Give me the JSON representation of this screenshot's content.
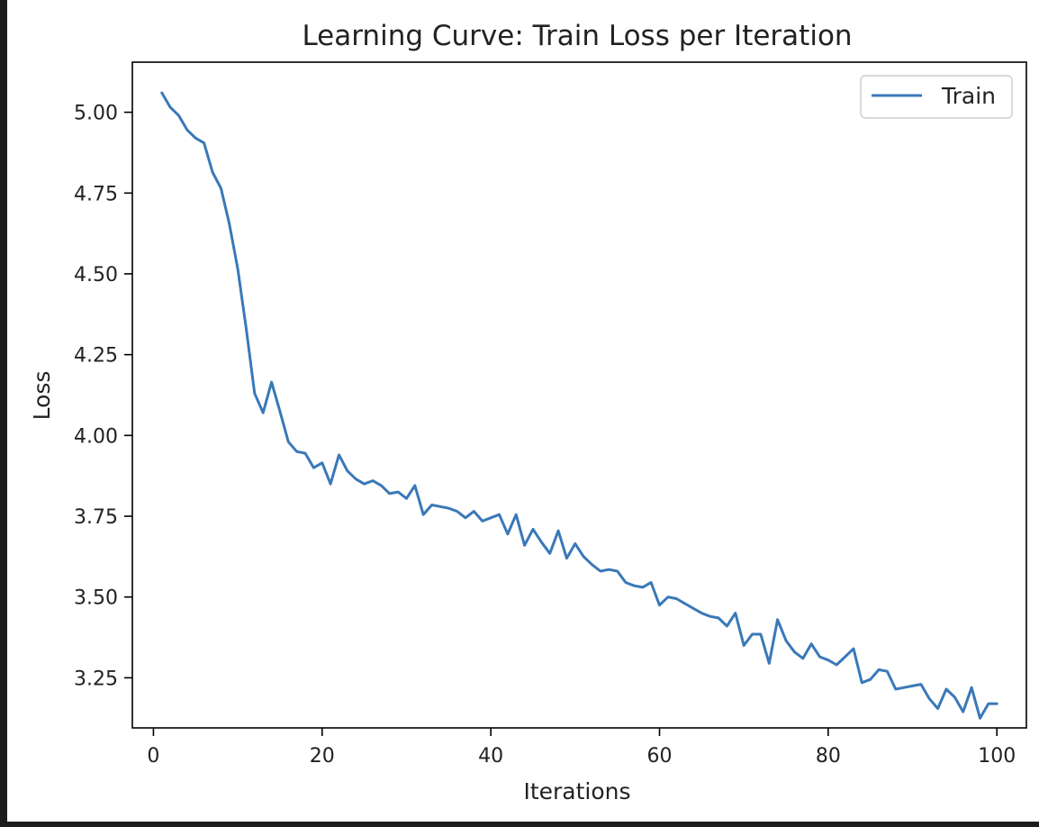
{
  "chart_data": {
    "type": "line",
    "title": "Learning Curve: Train Loss per Iteration",
    "xlabel": "Iterations",
    "ylabel": "Loss",
    "xlim": [
      -2.5,
      103.5
    ],
    "ylim": [
      3.095,
      5.155
    ],
    "xticks": [
      0,
      20,
      40,
      60,
      80,
      100
    ],
    "xtick_labels": [
      "0",
      "20",
      "40",
      "60",
      "80",
      "100"
    ],
    "yticks": [
      3.25,
      3.5,
      3.75,
      4.0,
      4.25,
      4.5,
      4.75,
      5.0
    ],
    "ytick_labels": [
      "3.25",
      "3.50",
      "3.75",
      "4.00",
      "4.25",
      "4.50",
      "4.75",
      "5.00"
    ],
    "grid": false,
    "legend_position": "upper right",
    "series": [
      {
        "name": "Train",
        "color": "#3a78b9",
        "x": [
          1,
          2,
          3,
          4,
          5,
          6,
          7,
          8,
          9,
          10,
          11,
          12,
          13,
          14,
          15,
          16,
          17,
          18,
          19,
          20,
          21,
          22,
          23,
          24,
          25,
          26,
          27,
          28,
          29,
          30,
          31,
          32,
          33,
          34,
          35,
          36,
          37,
          38,
          39,
          40,
          41,
          42,
          43,
          44,
          45,
          46,
          47,
          48,
          49,
          50,
          51,
          52,
          53,
          54,
          55,
          56,
          57,
          58,
          59,
          60,
          61,
          62,
          63,
          64,
          65,
          66,
          67,
          68,
          69,
          70,
          71,
          72,
          73,
          74,
          75,
          76,
          77,
          78,
          79,
          80,
          81,
          82,
          83,
          84,
          85,
          86,
          87,
          88,
          89,
          90,
          91,
          92,
          93,
          94,
          95,
          96,
          97,
          98,
          99,
          100
        ],
        "y": [
          5.06,
          5.015,
          4.99,
          4.945,
          4.92,
          4.905,
          4.815,
          4.765,
          4.655,
          4.515,
          4.33,
          4.13,
          4.07,
          4.165,
          4.075,
          3.98,
          3.95,
          3.945,
          3.9,
          3.915,
          3.85,
          3.94,
          3.89,
          3.865,
          3.85,
          3.86,
          3.845,
          3.82,
          3.825,
          3.805,
          3.845,
          3.755,
          3.785,
          3.78,
          3.775,
          3.765,
          3.745,
          3.765,
          3.735,
          3.745,
          3.755,
          3.695,
          3.755,
          3.66,
          3.71,
          3.67,
          3.635,
          3.705,
          3.62,
          3.665,
          3.625,
          3.6,
          3.58,
          3.585,
          3.58,
          3.545,
          3.535,
          3.53,
          3.545,
          3.475,
          3.5,
          3.495,
          3.48,
          3.465,
          3.45,
          3.44,
          3.435,
          3.41,
          3.45,
          3.35,
          3.385,
          3.385,
          3.295,
          3.43,
          3.365,
          3.33,
          3.31,
          3.355,
          3.315,
          3.305,
          3.29,
          3.315,
          3.34,
          3.235,
          3.245,
          3.275,
          3.27,
          3.215,
          3.22,
          3.225,
          3.23,
          3.185,
          3.155,
          3.215,
          3.19,
          3.145,
          3.22,
          3.125,
          3.17,
          3.17
        ]
      }
    ]
  }
}
